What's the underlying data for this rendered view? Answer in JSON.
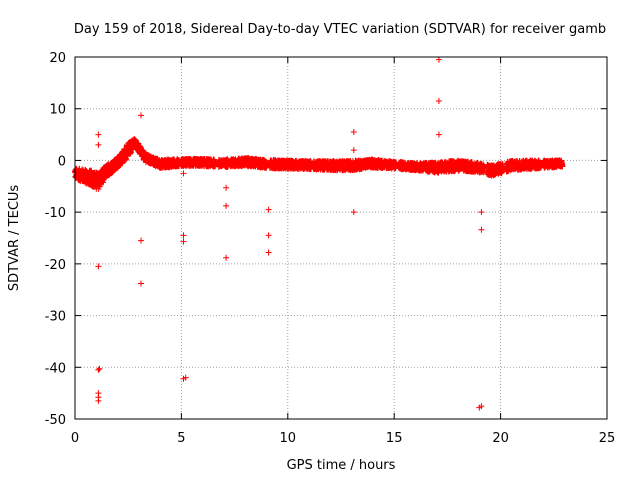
{
  "chart_data": {
    "type": "scatter",
    "title": "Day 159 of 2018, Sidereal Day-to-day VTEC variation (SDTVAR) for receiver gamb",
    "xlabel": "GPS time / hours",
    "ylabel": "SDTVAR / TECUs",
    "xlim": [
      0,
      25
    ],
    "ylim": [
      -50,
      20
    ],
    "xticks": [
      0,
      5,
      10,
      15,
      20,
      25
    ],
    "yticks": [
      -50,
      -40,
      -30,
      -20,
      -10,
      0,
      10,
      20
    ],
    "grid": true,
    "marker": "+",
    "color": "#ff0000",
    "dense_band": [
      [
        0.0,
        -2.5,
        1.0
      ],
      [
        0.4,
        -3.0,
        1.3
      ],
      [
        0.8,
        -3.5,
        1.5
      ],
      [
        1.1,
        -4.0,
        1.6
      ],
      [
        1.5,
        -2.0,
        1.2
      ],
      [
        2.0,
        -0.5,
        1.0
      ],
      [
        2.5,
        2.0,
        1.4
      ],
      [
        2.8,
        3.5,
        0.8
      ],
      [
        3.3,
        0.5,
        0.8
      ],
      [
        4.0,
        -0.7,
        0.8
      ],
      [
        5.0,
        -0.4,
        0.7
      ],
      [
        6.0,
        -0.4,
        0.7
      ],
      [
        7.0,
        -0.6,
        0.7
      ],
      [
        8.0,
        -0.3,
        0.8
      ],
      [
        9.0,
        -0.7,
        0.8
      ],
      [
        10.0,
        -0.8,
        0.8
      ],
      [
        11.0,
        -0.9,
        0.8
      ],
      [
        12.0,
        -1.0,
        0.9
      ],
      [
        13.0,
        -1.0,
        0.9
      ],
      [
        14.0,
        -0.6,
        0.8
      ],
      [
        15.0,
        -0.9,
        0.7
      ],
      [
        16.0,
        -1.2,
        0.7
      ],
      [
        17.0,
        -1.4,
        1.0
      ],
      [
        18.0,
        -1.0,
        1.0
      ],
      [
        19.0,
        -1.4,
        0.9
      ],
      [
        19.6,
        -2.0,
        1.0
      ],
      [
        20.5,
        -1.0,
        0.9
      ],
      [
        21.5,
        -0.8,
        0.8
      ],
      [
        22.9,
        -0.6,
        0.6
      ]
    ],
    "band_points_per_hour": 110,
    "outliers": [
      [
        1.1,
        5.0
      ],
      [
        1.1,
        3.0
      ],
      [
        1.1,
        -20.5
      ],
      [
        1.15,
        -40.3
      ],
      [
        1.1,
        -40.5
      ],
      [
        1.1,
        -45.0
      ],
      [
        1.1,
        -45.8
      ],
      [
        1.1,
        -46.5
      ],
      [
        1.0,
        -5.5
      ],
      [
        3.1,
        8.7
      ],
      [
        3.1,
        -15.5
      ],
      [
        3.1,
        -23.8
      ],
      [
        5.1,
        -14.5
      ],
      [
        5.1,
        -15.7
      ],
      [
        5.1,
        -42.2
      ],
      [
        5.2,
        -42.0
      ],
      [
        5.1,
        -2.5
      ],
      [
        7.1,
        -5.3
      ],
      [
        7.1,
        -8.8
      ],
      [
        7.1,
        -18.8
      ],
      [
        7.15,
        0.3
      ],
      [
        9.1,
        -9.5
      ],
      [
        9.1,
        -14.5
      ],
      [
        9.1,
        -17.8
      ],
      [
        13.1,
        5.5
      ],
      [
        13.1,
        2.0
      ],
      [
        13.1,
        -10.0
      ],
      [
        17.1,
        19.5
      ],
      [
        17.1,
        11.5
      ],
      [
        17.1,
        5.0
      ],
      [
        19.1,
        -10.0
      ],
      [
        19.1,
        -13.4
      ],
      [
        19.1,
        -47.5
      ],
      [
        19.0,
        -47.8
      ]
    ]
  }
}
